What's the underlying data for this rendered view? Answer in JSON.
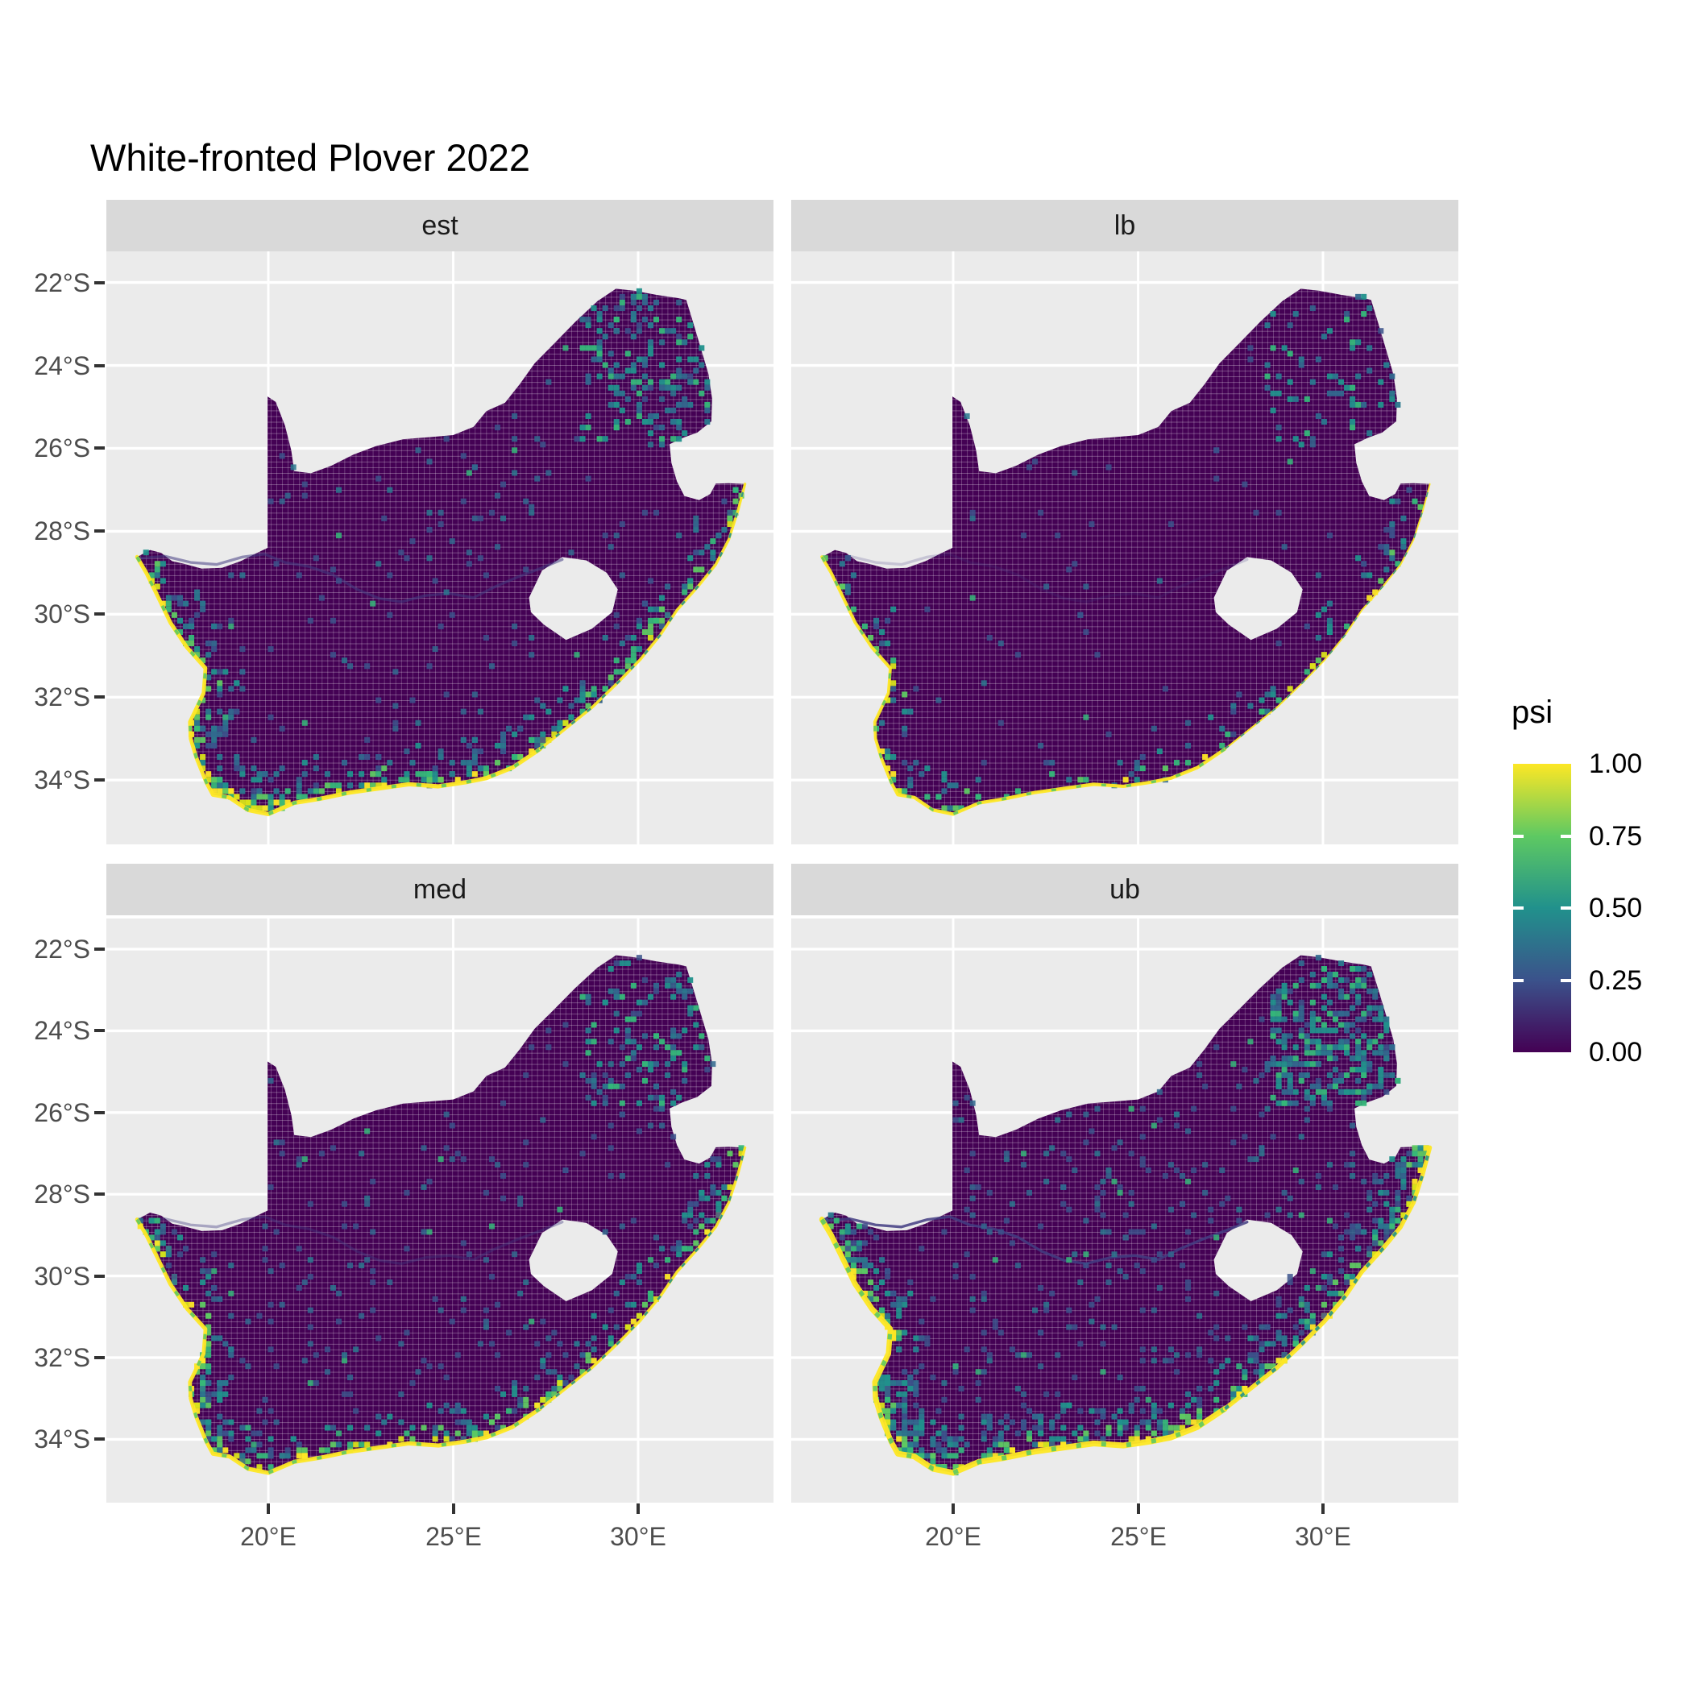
{
  "title": "White-fronted Plover 2022",
  "facets": [
    {
      "label": "est"
    },
    {
      "label": "lb"
    },
    {
      "label": "med"
    },
    {
      "label": "ub"
    }
  ],
  "axes": {
    "x": {
      "ticks": [
        "20°E",
        "25°E",
        "30°E"
      ]
    },
    "y": {
      "ticks": [
        "22°S",
        "24°S",
        "26°S",
        "28°S",
        "30°S",
        "32°S",
        "34°S"
      ]
    }
  },
  "legend": {
    "title": "psi",
    "tick_labels": [
      "1.00",
      "0.75",
      "0.50",
      "0.25",
      "0.00"
    ],
    "gradient": [
      {
        "value": 0.0,
        "color": "#440154"
      },
      {
        "value": 0.25,
        "color": "#3B528B"
      },
      {
        "value": 0.5,
        "color": "#21918C"
      },
      {
        "value": 0.75,
        "color": "#5EC962"
      },
      {
        "value": 1.0,
        "color": "#FDE725"
      }
    ]
  },
  "colors": {
    "figure_background": "#FFFFFF",
    "panel_background": "#EBEBEB",
    "strip_background": "#D9D9D9",
    "grid_line": "#FFFFFF",
    "axis_text": "#4D4D4D",
    "tick_mark": "#333333",
    "title_text": "#000000",
    "strip_text": "#1A1A1A",
    "land_low_psi": "#440154",
    "coast_high_psi": "#FDE725",
    "speckle_mid_psi": [
      "#3B528B",
      "#31688E",
      "#2A788E",
      "#21918C",
      "#35B779",
      "#5EC962"
    ]
  },
  "chart_data": {
    "type": "heatmap",
    "subtype": "faceted_raster_choropleth_map",
    "title": "White-fronted Plover 2022",
    "region": "South Africa",
    "coordinate_system": "longitude (°E) vs latitude (°S)",
    "facets": [
      "est",
      "lb",
      "med",
      "ub"
    ],
    "facet_layout": "2x2 grid: est (top-left), lb (top-right), med (bottom-left), ub (bottom-right)",
    "x_axis": {
      "label": "",
      "tick_labels": [
        "20°E",
        "25°E",
        "30°E"
      ],
      "tick_values_deg_east": [
        20,
        25,
        30
      ],
      "range_deg_east": [
        15.6,
        33.7
      ]
    },
    "y_axis": {
      "label": "",
      "tick_labels": [
        "22°S",
        "24°S",
        "26°S",
        "28°S",
        "30°S",
        "32°S",
        "34°S"
      ],
      "tick_values_deg_south": [
        22,
        24,
        26,
        28,
        30,
        32,
        34
      ],
      "range_deg_south": [
        21.3,
        35.5
      ]
    },
    "fill": {
      "variable": "psi",
      "scale": "viridis",
      "limits": [
        0,
        1
      ],
      "legend_breaks": [
        1.0,
        0.75,
        0.5,
        0.25,
        0.0
      ],
      "legend_position": "right"
    },
    "grid_resolution": "~0.15 degree raster cells with thin white cell borders",
    "values_pattern": {
      "interior": "psi ~ 0.00 (dark purple) over nearly all of the South African interior in every facet",
      "west_and_south_coast": "psi ~ 0.75-1.00: one-cell-wide yellow band with green/teal cells just inland, along the Atlantic and southern coastline",
      "east_coast": "thinner band of moderate-to-high psi (teal/green/yellow) along the KwaZulu-Natal coast",
      "northeast_border": "scattered teal/green cells and a short high-psi streak near the Limpopo/Kruger border (~24.5°S)",
      "river": "faint band of slightly elevated psi tracing the Orange River across the interior (~28.5-29.7°S)",
      "facet_comparison": "lb shows the fewest/faintest high-psi cells; est and med are intermediate; ub shows the thickest yellow coastal band and the densest inland moderate-psi speckling"
    },
    "no_data_areas": [
      "Lesotho (white hole in map)",
      "Eswatini (white notch on eastern border)",
      "ocean/background"
    ]
  }
}
